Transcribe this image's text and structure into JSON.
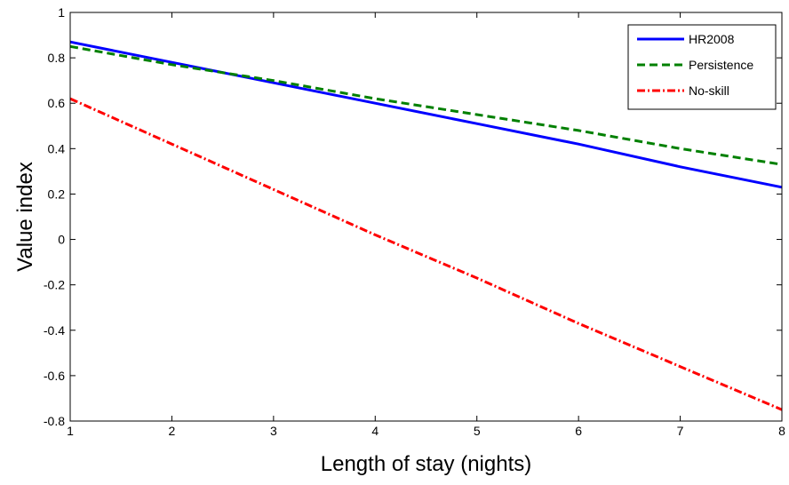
{
  "chart_data": {
    "type": "line",
    "title": "",
    "xlabel": "Length of stay (nights)",
    "ylabel": "Value index",
    "xlim": [
      1,
      8
    ],
    "ylim": [
      -0.8,
      1
    ],
    "grid": false,
    "legend_position": "top-right",
    "x_ticks": [
      1,
      2,
      3,
      4,
      5,
      6,
      7,
      8
    ],
    "y_ticks": [
      -0.8,
      -0.6,
      -0.4,
      -0.2,
      0,
      0.2,
      0.4,
      0.6,
      0.8,
      1
    ],
    "x": [
      1,
      2,
      3,
      4,
      5,
      6,
      7,
      8
    ],
    "series": [
      {
        "name": "HR2008",
        "values": [
          0.87,
          0.78,
          0.69,
          0.6,
          0.51,
          0.42,
          0.32,
          0.23
        ],
        "color": "#0000ff",
        "style": "solid"
      },
      {
        "name": "Persistence",
        "values": [
          0.85,
          0.77,
          0.7,
          0.62,
          0.55,
          0.48,
          0.4,
          0.33
        ],
        "color": "#008000",
        "style": "dashed"
      },
      {
        "name": "No-skill",
        "values": [
          0.62,
          0.42,
          0.22,
          0.02,
          -0.17,
          -0.37,
          -0.56,
          -0.75
        ],
        "color": "#ff0000",
        "style": "dashdot"
      }
    ]
  }
}
